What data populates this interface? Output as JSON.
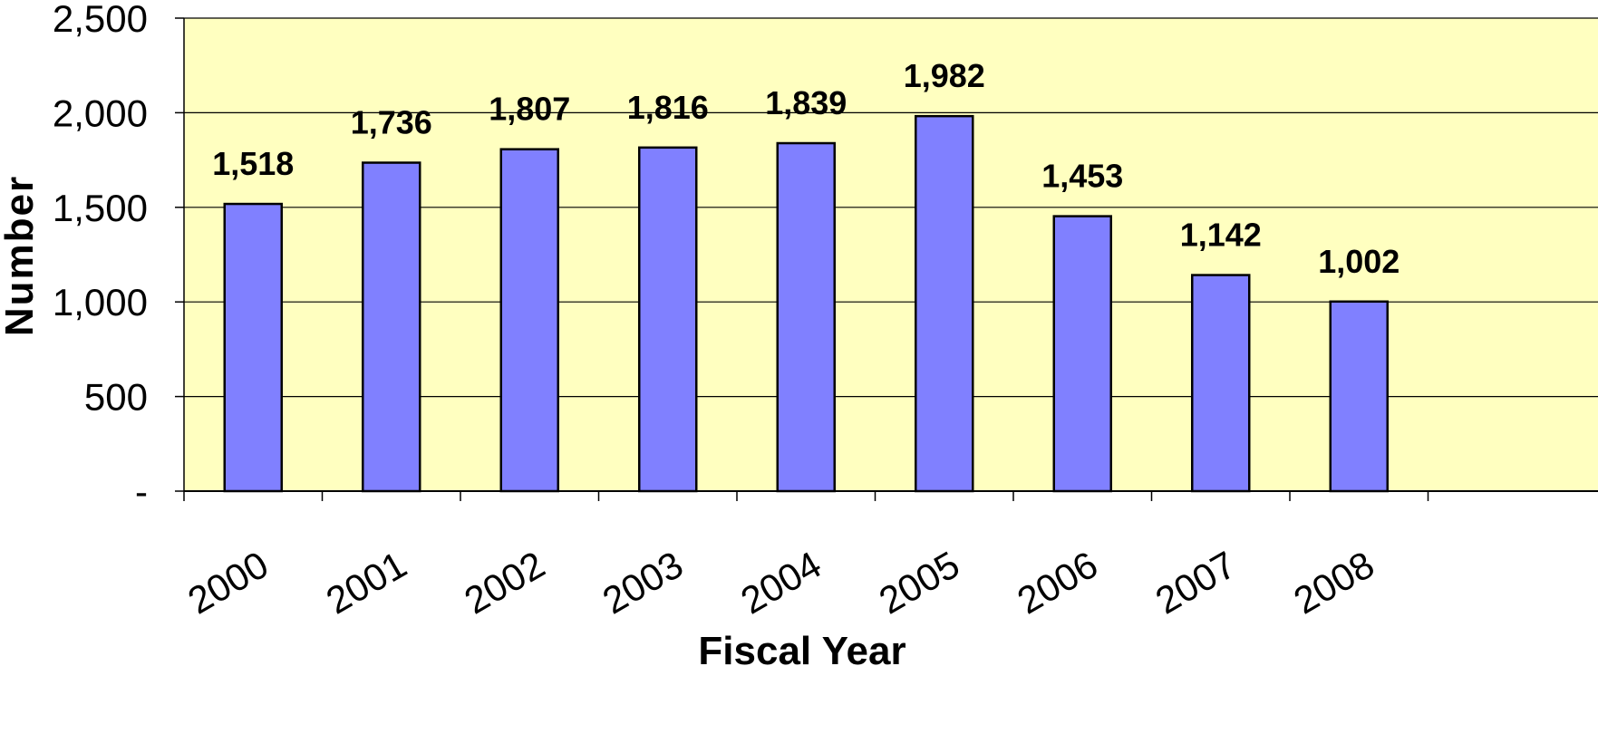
{
  "chart_data": {
    "type": "bar",
    "title": "",
    "xlabel": "Fiscal Year",
    "ylabel": "Number",
    "categories": [
      "2000",
      "2001",
      "2002",
      "2003",
      "2004",
      "2005",
      "2006",
      "2007",
      "2008"
    ],
    "values": [
      1518,
      1736,
      1807,
      1816,
      1839,
      1982,
      1453,
      1142,
      1002
    ],
    "value_labels": [
      "1,518",
      "1,736",
      "1,807",
      "1,816",
      "1,839",
      "1,982",
      "1,453",
      "1,142",
      "1,002"
    ],
    "ylim": [
      0,
      2500
    ],
    "yticks": [
      0,
      500,
      1000,
      1500,
      2000,
      2500
    ],
    "ytick_labels": [
      "-",
      "500",
      "1,000",
      "1,500",
      "2,000",
      "2,500"
    ],
    "grid": true,
    "legend": false,
    "colors": {
      "plot_background": "#ffffc0",
      "bar_fill": "#8080ff",
      "bar_stroke": "#000000",
      "grid": "#000000",
      "axis": "#000000"
    }
  }
}
